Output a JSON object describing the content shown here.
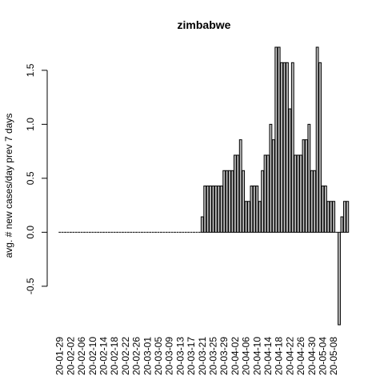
{
  "chart_data": {
    "type": "bar",
    "title": "zimbabwe",
    "xlabel": "",
    "ylabel": "avg. # new cases/day prev  7  days",
    "ylim": [
      -0.857,
      1.714
    ],
    "yticks": [
      -0.5,
      0.0,
      0.5,
      1.0,
      1.5
    ],
    "ytick_labels": [
      "-0.5",
      "0.0",
      "0.5",
      "1.0",
      "1.5"
    ],
    "grid": false,
    "legend": "none",
    "bar_fill": "#bebebe",
    "bar_stroke": "#000000",
    "start_date": "2020-01-29",
    "end_date": "2020-05-10",
    "xtick_labels": [
      "20-01-29",
      "20-02-02",
      "20-02-06",
      "20-02-10",
      "20-02-14",
      "20-02-18",
      "20-02-22",
      "20-02-26",
      "20-03-01",
      "20-03-05",
      "20-03-09",
      "20-03-13",
      "20-03-17",
      "20-03-21",
      "20-03-25",
      "20-03-29",
      "20-04-02",
      "20-04-06",
      "20-04-10",
      "20-04-14",
      "20-04-18",
      "20-04-22",
      "20-04-26",
      "20-04-30",
      "20-05-04",
      "20-05-08"
    ],
    "values": [
      0,
      0,
      0,
      0,
      0,
      0,
      0,
      0,
      0,
      0,
      0,
      0,
      0,
      0,
      0,
      0,
      0,
      0,
      0,
      0,
      0,
      0,
      0,
      0,
      0,
      0,
      0,
      0,
      0,
      0,
      0,
      0,
      0,
      0,
      0,
      0,
      0,
      0,
      0,
      0,
      0,
      0,
      0,
      0,
      0,
      0,
      0,
      0,
      0,
      0,
      0,
      0,
      0.143,
      0.429,
      0.429,
      0.429,
      0.429,
      0.429,
      0.429,
      0.429,
      0.571,
      0.571,
      0.571,
      0.571,
      0.714,
      0.714,
      0.857,
      0.571,
      0.286,
      0.286,
      0.429,
      0.429,
      0.429,
      0.286,
      0.571,
      0.714,
      0.714,
      1.0,
      0.857,
      1.714,
      1.714,
      1.571,
      1.571,
      1.571,
      1.143,
      1.571,
      0.714,
      0.714,
      0.714,
      0.857,
      0.857,
      1.0,
      0.571,
      0.571,
      1.714,
      1.571,
      0.429,
      0.429,
      0.286,
      0.286,
      0.286,
      0,
      -0.857,
      0.143,
      0.286,
      0.286
    ]
  }
}
